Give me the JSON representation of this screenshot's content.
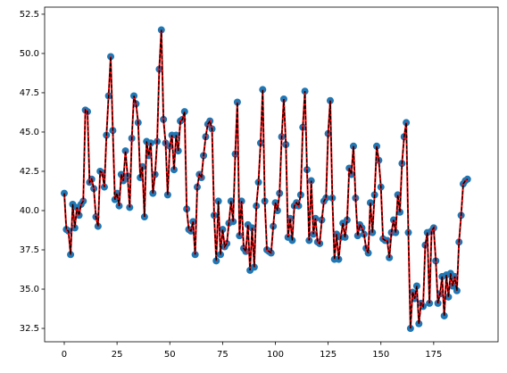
{
  "chart_data": {
    "type": "line",
    "x": [
      0,
      1,
      2,
      3,
      4,
      5,
      6,
      7,
      8,
      9,
      10,
      11,
      12,
      13,
      14,
      15,
      16,
      17,
      18,
      19,
      20,
      21,
      22,
      23,
      24,
      25,
      26,
      27,
      28,
      29,
      30,
      31,
      32,
      33,
      34,
      35,
      36,
      37,
      38,
      39,
      40,
      41,
      42,
      43,
      44,
      45,
      46,
      47,
      48,
      49,
      50,
      51,
      52,
      53,
      54,
      55,
      56,
      57,
      58,
      59,
      60,
      61,
      62,
      63,
      64,
      65,
      66,
      67,
      68,
      69,
      70,
      71,
      72,
      73,
      74,
      75,
      76,
      77,
      78,
      79,
      80,
      81,
      82,
      83,
      84,
      85,
      86,
      87,
      88,
      89,
      90,
      91,
      92,
      93,
      94,
      95,
      96,
      97,
      98,
      99,
      100,
      101,
      102,
      103,
      104,
      105,
      106,
      107,
      108,
      109,
      110,
      111,
      112,
      113,
      114,
      115,
      116,
      117,
      118,
      119,
      120,
      121,
      122,
      123,
      124,
      125,
      126,
      127,
      128,
      129,
      130,
      131,
      132,
      133,
      134,
      135,
      136,
      137,
      138,
      139,
      140,
      141,
      142,
      143,
      144,
      145,
      146,
      147,
      148,
      149,
      150,
      151,
      152,
      153,
      154,
      155,
      156,
      157,
      158,
      159,
      160,
      161,
      162,
      163,
      164,
      165,
      166,
      167,
      168,
      169,
      170,
      171,
      172,
      173,
      174,
      175,
      176,
      177,
      178,
      179,
      180,
      181,
      182,
      183,
      184,
      185,
      186,
      187,
      188,
      189,
      190,
      191
    ],
    "series": [
      {
        "color": "#1f77b4",
        "line_color": "#ff0000",
        "dash_color": "#000000",
        "values": [
          41.1,
          38.8,
          38.7,
          37.2,
          40.4,
          38.9,
          40.2,
          39.7,
          40.4,
          40.6,
          46.4,
          46.3,
          41.8,
          42.0,
          41.4,
          39.6,
          39.0,
          42.5,
          42.4,
          41.5,
          44.8,
          47.3,
          49.8,
          45.1,
          40.7,
          41.1,
          40.3,
          42.3,
          41.9,
          43.8,
          42.2,
          40.2,
          44.6,
          47.3,
          46.8,
          45.6,
          42.1,
          42.8,
          39.6,
          44.4,
          43.5,
          44.3,
          41.1,
          42.3,
          44.4,
          49.0,
          51.5,
          45.8,
          44.3,
          41.0,
          44.1,
          44.8,
          42.6,
          44.8,
          43.8,
          45.7,
          45.8,
          46.3,
          40.1,
          38.8,
          38.7,
          39.3,
          37.2,
          41.5,
          42.3,
          42.1,
          43.5,
          44.7,
          45.5,
          45.7,
          45.2,
          39.7,
          36.8,
          40.6,
          37.2,
          38.8,
          37.7,
          37.9,
          39.2,
          40.6,
          39.3,
          43.6,
          46.9,
          38.4,
          40.6,
          37.6,
          37.4,
          39.1,
          36.2,
          38.9,
          36.4,
          40.3,
          41.8,
          44.3,
          47.7,
          40.6,
          37.5,
          37.4,
          37.3,
          39.0,
          40.5,
          40.0,
          41.1,
          44.7,
          47.1,
          44.2,
          38.3,
          39.5,
          38.1,
          40.3,
          40.5,
          40.3,
          41.0,
          45.3,
          47.6,
          42.6,
          38.1,
          41.9,
          38.5,
          39.5,
          38.0,
          37.9,
          39.4,
          40.6,
          40.8,
          44.9,
          47.0,
          40.8,
          36.9,
          38.5,
          36.9,
          38.3,
          39.2,
          38.3,
          39.4,
          42.7,
          42.3,
          44.1,
          40.8,
          38.4,
          39.1,
          38.9,
          38.5,
          37.6,
          37.3,
          40.5,
          38.6,
          41.0,
          44.1,
          43.2,
          41.5,
          38.2,
          38.1,
          38.1,
          37.0,
          38.6,
          39.4,
          38.6,
          41.0,
          39.9,
          43.0,
          44.7,
          45.6,
          38.6,
          32.5,
          34.8,
          34.4,
          35.2,
          32.8,
          34.1,
          33.9,
          37.8,
          38.6,
          34.1,
          38.7,
          38.9,
          36.8,
          34.1,
          34.7,
          35.8,
          33.3,
          35.9,
          34.5,
          36.0,
          35.2,
          35.8,
          34.9,
          38.0,
          39.7,
          41.7,
          41.9,
          42.0
        ]
      }
    ],
    "xlim": [
      -9.3,
      205.5
    ],
    "xticks": [
      0,
      25,
      50,
      75,
      100,
      125,
      150,
      175
    ],
    "ylim": [
      31.65,
      52.95
    ],
    "yticks": [
      32.5,
      {
        "value": 35,
        "label": "35.0"
      },
      37.5,
      {
        "value": 40,
        "label": "40.0"
      },
      42.5,
      {
        "value": 45,
        "label": "45.0"
      },
      47.5,
      {
        "value": 50,
        "label": "50.0"
      },
      52.5
    ]
  }
}
